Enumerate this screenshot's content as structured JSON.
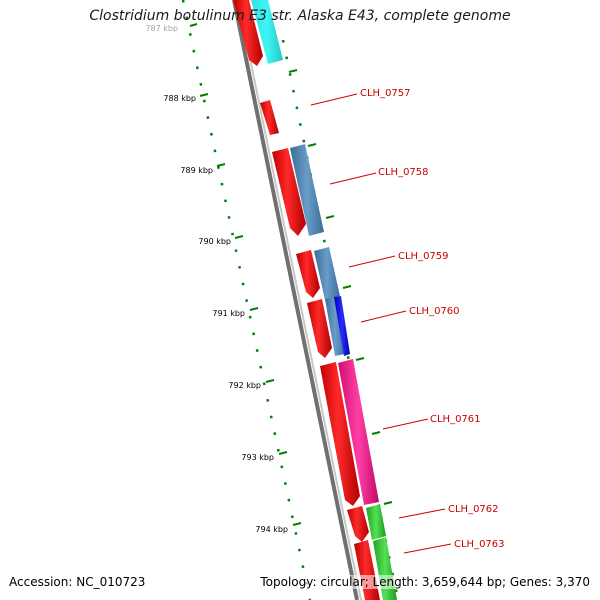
{
  "title": "Clostridium botulinum E3 str. Alaska E43, complete genome",
  "footer": {
    "accession": "Accession: NC_010723",
    "summary": "Topology: circular; Length: 3,659,644 bp; Genes: 3,370"
  },
  "ruler": [
    "787 kbp",
    "788 kbp",
    "789 kbp",
    "790 kbp",
    "791 kbp",
    "792 kbp",
    "793 kbp",
    "794 kbp"
  ],
  "gene_labels": [
    "CLH_0757",
    "CLH_0758",
    "CLH_0759",
    "CLH_0760",
    "CLH_0761",
    "CLH_0762",
    "CLH_0763"
  ],
  "colors": {
    "backbone": "#808080",
    "cds_forward": "#ff0000",
    "cog_cyan": "#00ffff",
    "cog_steelblue": "#4682b4",
    "cog_blue": "#0000ff",
    "cog_magenta": "#ff1493",
    "cog_green": "#32cd32",
    "ruler_ticks": "#008000",
    "label_text": "#cc0000"
  }
}
